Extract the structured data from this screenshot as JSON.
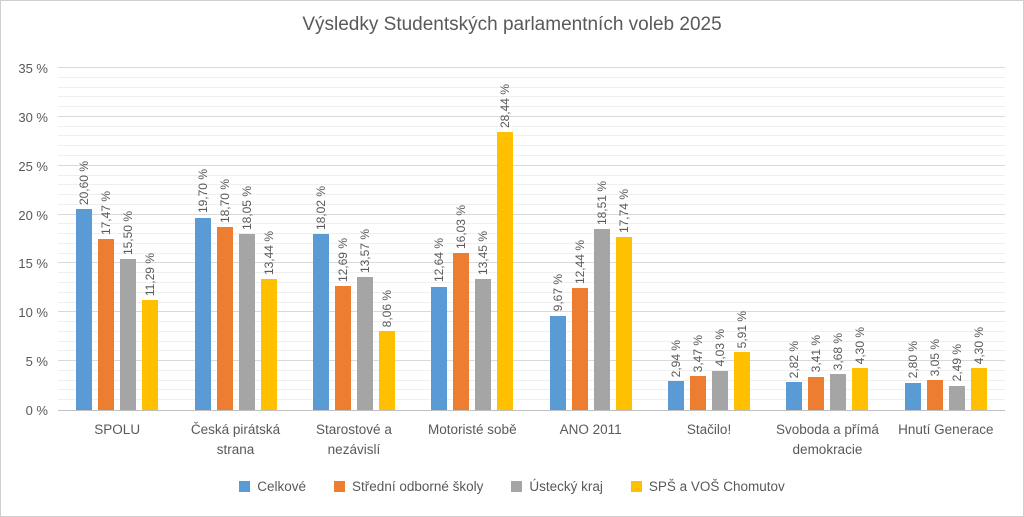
{
  "title": "Výsledky Studentských parlamentních voleb 2025",
  "chart_data": {
    "type": "bar",
    "title": "Výsledky Studentských parlamentních voleb 2025",
    "categories": [
      "SPOLU",
      "Česká pirátská strana",
      "Starostové a nezávislí",
      "Motoristé sobě",
      "ANO 2011",
      "Stačilo!",
      "Svoboda a přímá demokracie",
      "Hnutí Generace"
    ],
    "series": [
      {
        "name": "Celkové",
        "color": "#5B9BD5",
        "values": [
          20.6,
          19.7,
          18.02,
          12.64,
          9.67,
          2.94,
          2.82,
          2.8
        ],
        "labels": [
          "20,60 %",
          "19,70 %",
          "18,02 %",
          "12,64 %",
          "9,67 %",
          "2,94 %",
          "2,82 %",
          "2,80 %"
        ]
      },
      {
        "name": "Střední odborné školy",
        "color": "#ED7D31",
        "values": [
          17.47,
          18.7,
          12.69,
          16.03,
          12.44,
          3.47,
          3.41,
          3.05
        ],
        "labels": [
          "17,47 %",
          "18,70 %",
          "12,69 %",
          "16,03 %",
          "12,44 %",
          "3,47 %",
          "3,41 %",
          "3,05 %"
        ]
      },
      {
        "name": "Ústecký kraj",
        "color": "#A5A5A5",
        "values": [
          15.5,
          18.05,
          13.57,
          13.45,
          18.51,
          4.03,
          3.68,
          2.49
        ],
        "labels": [
          "15,50 %",
          "18,05 %",
          "13,57 %",
          "13,45 %",
          "18,51 %",
          "4,03 %",
          "3,68 %",
          "2,49 %"
        ]
      },
      {
        "name": "SPŠ a VOŠ Chomutov",
        "color": "#FFC000",
        "values": [
          11.29,
          13.44,
          8.06,
          28.44,
          17.74,
          5.91,
          4.3,
          4.3
        ],
        "labels": [
          "11,29 %",
          "13,44 %",
          "8,06 %",
          "28,44 %",
          "17,74 %",
          "5,91 %",
          "4,30 %",
          "4,30 %"
        ]
      }
    ],
    "ylim": [
      0,
      35
    ],
    "y_minor_step": 1,
    "y_major_step": 5,
    "y_tick_labels": [
      "0 %",
      "5 %",
      "10 %",
      "15 %",
      "20 %",
      "25 %",
      "30 %",
      "35 %"
    ],
    "grid": "on",
    "legend_position": "bottom"
  }
}
